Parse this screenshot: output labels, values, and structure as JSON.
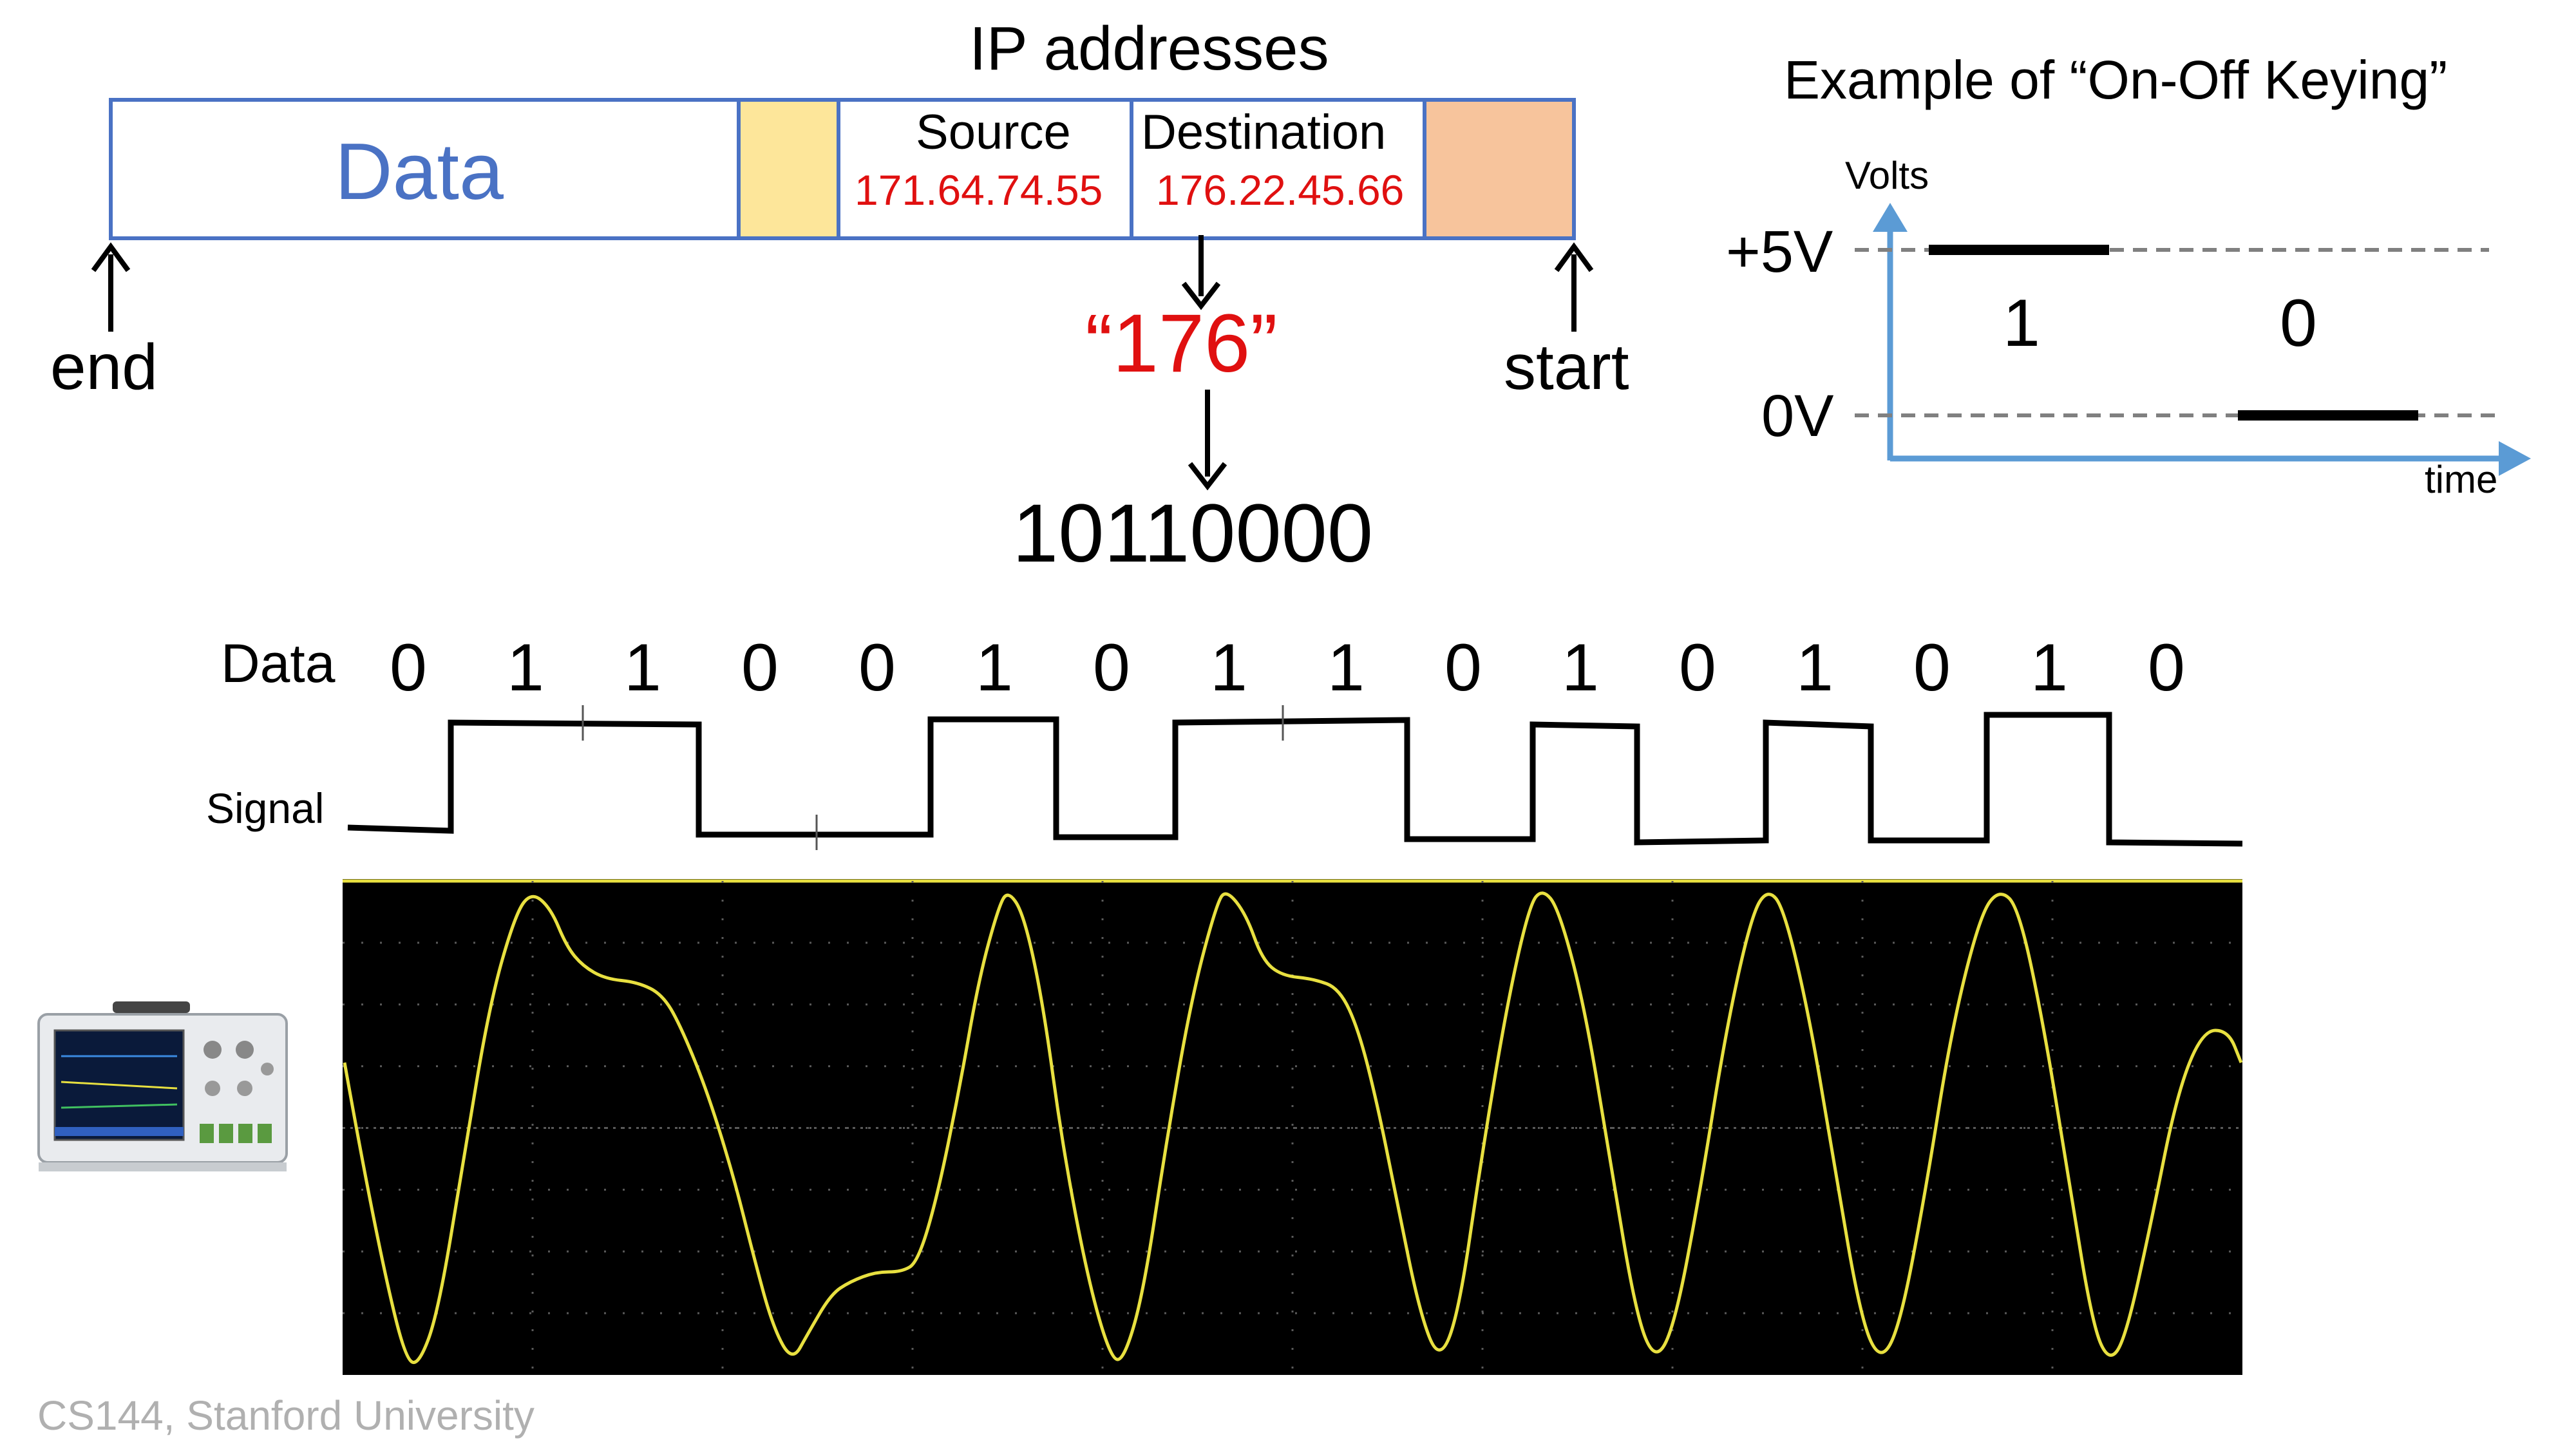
{
  "packet": {
    "heading": "IP addresses",
    "data_label": "Data",
    "source_label": "Source",
    "source_value": "171.64.74.55",
    "dest_label": "Destination",
    "dest_value": "176.22.45.66",
    "end_label": "end",
    "start_label": "start",
    "octet_quoted": "“176”",
    "octet_binary": "10110000",
    "colors": {
      "box_border": "#4a72c4",
      "data_text": "#4a72c4",
      "field_yellow": "#fde69a",
      "field_orange": "#f7c49c",
      "address_red": "#e01010"
    }
  },
  "ook": {
    "title": "Example of “On-Off Keying”",
    "y_axis_label": "Volts",
    "x_axis_label": "time",
    "high_label": "+5V",
    "low_label": "0V",
    "bit_one": "1",
    "bit_zero": "0",
    "axis_color": "#5b9bd5"
  },
  "waveform": {
    "data_label": "Data",
    "signal_label": "Signal",
    "bits": [
      "0",
      "1",
      "1",
      "0",
      "0",
      "1",
      "0",
      "1",
      "1",
      "0",
      "1",
      "0",
      "1",
      "0",
      "1",
      "0"
    ]
  },
  "scope": {
    "trace_color": "#e8e040",
    "screen_color": "#000000",
    "device_icon": "oscilloscope-icon"
  },
  "footer": "CS144, Stanford University"
}
